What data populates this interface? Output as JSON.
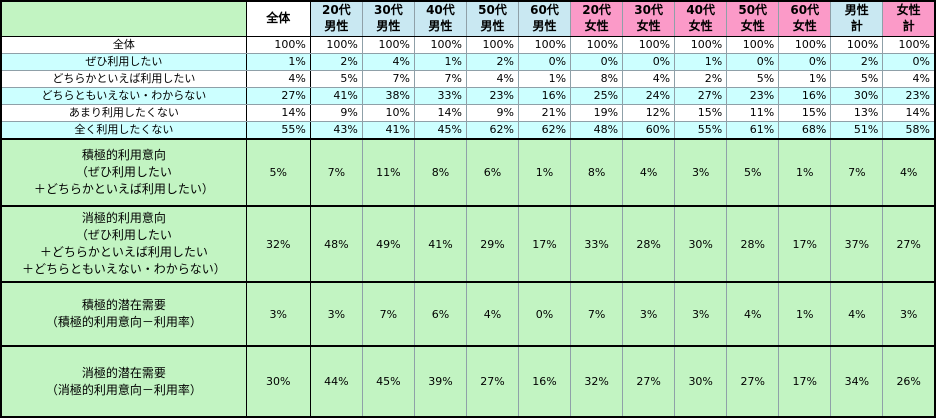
{
  "colors": {
    "corner_green": "#C2F4C2",
    "male_header_blue": "#C9E8F2",
    "female_header_pink": "#FB9AC8",
    "alt_row_cyan": "#CCFFFF",
    "summary_row_green": "#C2F4C2",
    "grid_line": "#8FA0A8",
    "frame_black": "#000000",
    "text": "#000000"
  },
  "chart_data": {
    "type": "table",
    "columns": [
      {
        "label": "",
        "group": "corner"
      },
      {
        "label": "全体",
        "group": "total"
      },
      {
        "label": "20代\n男性",
        "group": "male"
      },
      {
        "label": "30代\n男性",
        "group": "male"
      },
      {
        "label": "40代\n男性",
        "group": "male"
      },
      {
        "label": "50代\n男性",
        "group": "male"
      },
      {
        "label": "60代\n男性",
        "group": "male"
      },
      {
        "label": "20代\n女性",
        "group": "female"
      },
      {
        "label": "30代\n女性",
        "group": "female"
      },
      {
        "label": "40代\n女性",
        "group": "female"
      },
      {
        "label": "50代\n女性",
        "group": "female"
      },
      {
        "label": "60代\n女性",
        "group": "female"
      },
      {
        "label": "男性\n計",
        "group": "male"
      },
      {
        "label": "女性\n計",
        "group": "female"
      }
    ],
    "rows": [
      {
        "label": "全体",
        "type": "top",
        "values": [
          "100%",
          "100%",
          "100%",
          "100%",
          "100%",
          "100%",
          "100%",
          "100%",
          "100%",
          "100%",
          "100%",
          "100%",
          "100%"
        ]
      },
      {
        "label": "ぜひ利用したい",
        "type": "top",
        "values": [
          "1%",
          "2%",
          "4%",
          "1%",
          "2%",
          "0%",
          "0%",
          "0%",
          "1%",
          "0%",
          "0%",
          "2%",
          "0%"
        ]
      },
      {
        "label": "どちらかといえば利用したい",
        "type": "top",
        "values": [
          "4%",
          "5%",
          "7%",
          "7%",
          "4%",
          "1%",
          "8%",
          "4%",
          "2%",
          "5%",
          "1%",
          "5%",
          "4%"
        ]
      },
      {
        "label": "どちらともいえない・わからない",
        "type": "top",
        "values": [
          "27%",
          "41%",
          "38%",
          "33%",
          "23%",
          "16%",
          "25%",
          "24%",
          "27%",
          "23%",
          "16%",
          "30%",
          "23%"
        ]
      },
      {
        "label": "あまり利用したくない",
        "type": "top",
        "values": [
          "14%",
          "9%",
          "10%",
          "14%",
          "9%",
          "21%",
          "19%",
          "12%",
          "15%",
          "11%",
          "15%",
          "13%",
          "14%"
        ]
      },
      {
        "label": "全く利用したくない",
        "type": "top",
        "values": [
          "55%",
          "43%",
          "41%",
          "45%",
          "62%",
          "62%",
          "48%",
          "60%",
          "55%",
          "61%",
          "68%",
          "51%",
          "58%"
        ]
      },
      {
        "label": "積極的利用意向\n（ぜひ利用したい\n＋どちらかといえば利用したい）",
        "type": "summary",
        "values": [
          "5%",
          "7%",
          "11%",
          "8%",
          "6%",
          "1%",
          "8%",
          "4%",
          "3%",
          "5%",
          "1%",
          "7%",
          "4%"
        ]
      },
      {
        "label": "消極的利用意向\n（ぜひ利用したい\n＋どちらかといえば利用したい\n＋どちらともいえない・わからない）",
        "type": "summary",
        "values": [
          "32%",
          "48%",
          "49%",
          "41%",
          "29%",
          "17%",
          "33%",
          "28%",
          "30%",
          "28%",
          "17%",
          "37%",
          "27%"
        ]
      },
      {
        "label": "積極的潜在需要\n（積極的利用意向－利用率）",
        "type": "summary",
        "values": [
          "3%",
          "3%",
          "7%",
          "6%",
          "4%",
          "0%",
          "7%",
          "3%",
          "3%",
          "4%",
          "1%",
          "4%",
          "3%"
        ]
      },
      {
        "label": "消極的潜在需要\n（消極的利用意向－利用率）",
        "type": "summary",
        "values": [
          "30%",
          "44%",
          "45%",
          "39%",
          "27%",
          "16%",
          "32%",
          "27%",
          "30%",
          "27%",
          "17%",
          "34%",
          "26%"
        ]
      }
    ]
  }
}
